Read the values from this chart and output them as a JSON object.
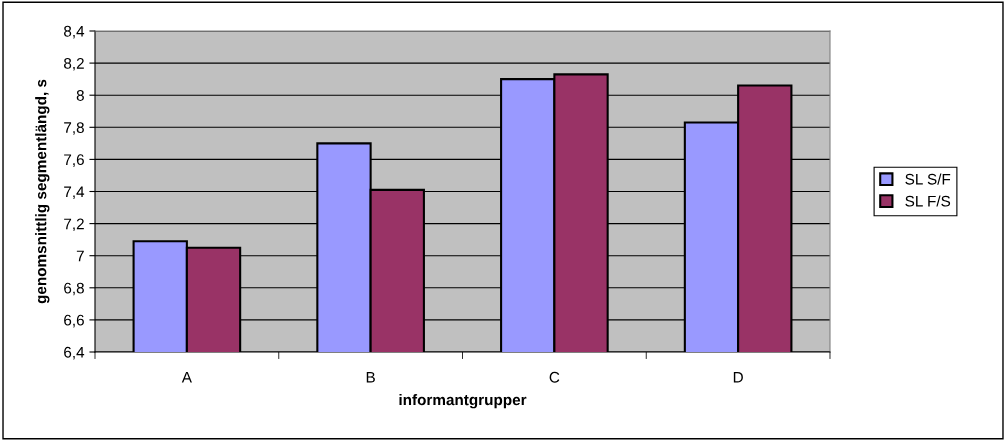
{
  "chart_data": {
    "type": "bar",
    "xlabel": "informantgrupper",
    "ylabel": "genomsnittlig segmentlängd, s",
    "categories": [
      "A",
      "B",
      "C",
      "D"
    ],
    "series": [
      {
        "name": "SL S/F",
        "color": "#9999ff",
        "values": [
          7.09,
          7.7,
          8.1,
          7.83
        ]
      },
      {
        "name": "SL F/S",
        "color": "#993366",
        "values": [
          7.05,
          7.41,
          8.13,
          8.06
        ]
      }
    ],
    "ylim": [
      6.4,
      8.4
    ],
    "yticks": [
      {
        "value": 6.4,
        "label": "6,4"
      },
      {
        "value": 6.6,
        "label": "6,6"
      },
      {
        "value": 6.8,
        "label": "6,8"
      },
      {
        "value": 7,
        "label": "7"
      },
      {
        "value": 7.2,
        "label": "7,2"
      },
      {
        "value": 7.4,
        "label": "7,4"
      },
      {
        "value": 7.6,
        "label": "7,6"
      },
      {
        "value": 7.8,
        "label": "7,8"
      },
      {
        "value": 8,
        "label": "8"
      },
      {
        "value": 8.2,
        "label": "8,2"
      },
      {
        "value": 8.4,
        "label": "8,4"
      }
    ],
    "grid": "y",
    "legend": "right"
  }
}
